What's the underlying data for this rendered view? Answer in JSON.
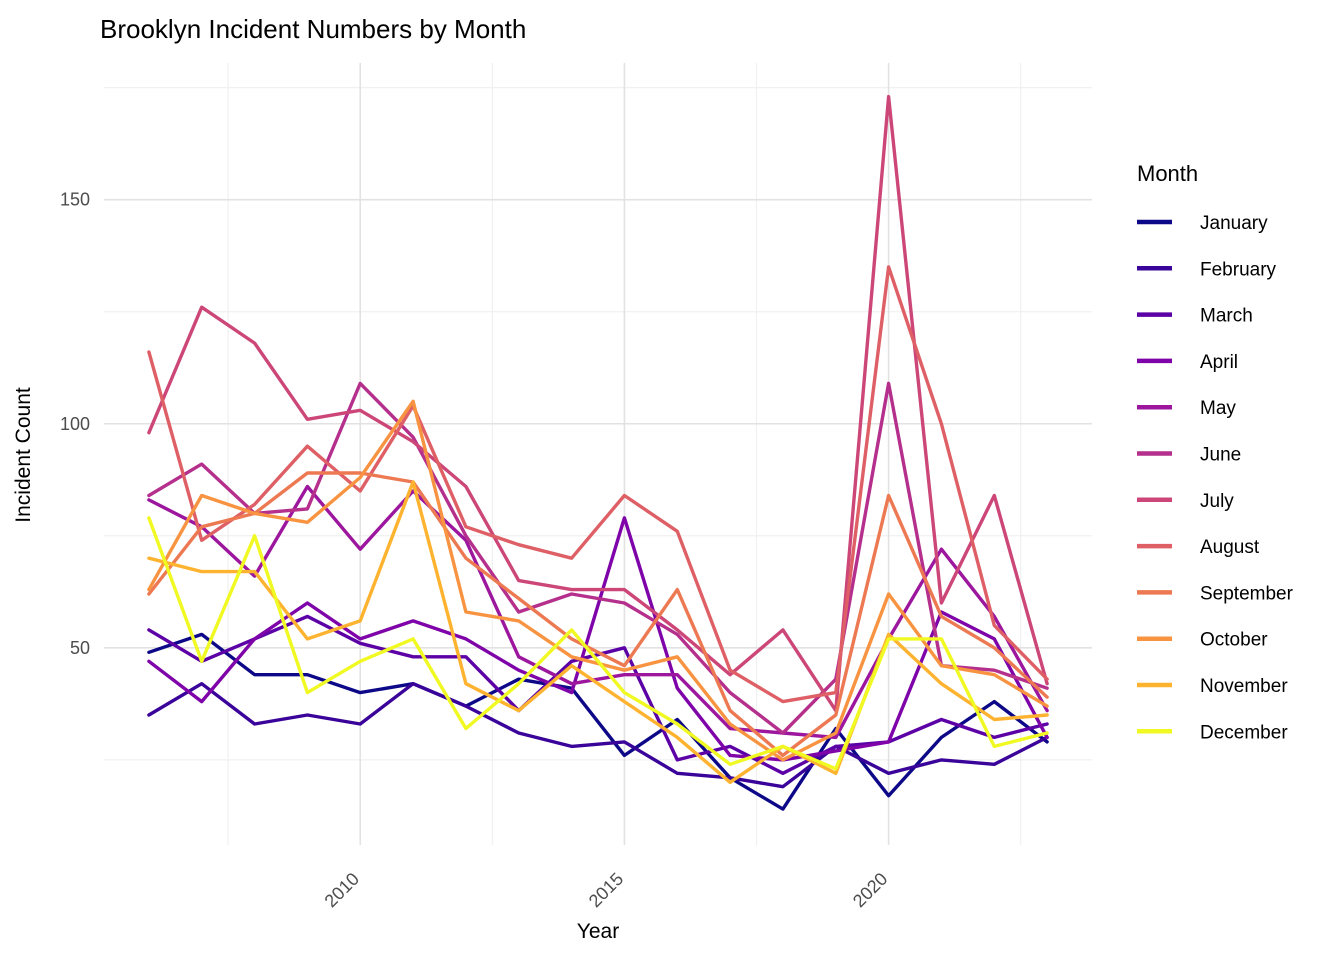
{
  "page": {
    "title": "Brooklyn Incident Numbers by Month"
  },
  "chart_data": {
    "type": "line",
    "title": "Brooklyn Incident Numbers by Month",
    "xlabel": "Year",
    "ylabel": "Incident Count",
    "legend_title": "Month",
    "legend_position": "right",
    "grid": true,
    "background": "#ffffff",
    "grid_major_color": "#e2e2e2",
    "grid_minor_color": "#f0f0f0",
    "tick_label_color": "#4d4d4d",
    "x": [
      2006,
      2007,
      2008,
      2009,
      2010,
      2011,
      2012,
      2013,
      2014,
      2015,
      2016,
      2017,
      2018,
      2019,
      2020,
      2021,
      2022,
      2023
    ],
    "xlim": [
      2005.15,
      2023.85
    ],
    "ylim": [
      6,
      180.5
    ],
    "x_major_ticks": [
      2010,
      2015,
      2020
    ],
    "x_minor_ticks": [
      2007.5,
      2012.5,
      2017.5,
      2022.5
    ],
    "y_major_ticks": [
      50,
      100,
      150
    ],
    "y_minor_ticks": [
      25,
      75,
      125,
      175
    ],
    "series": [
      {
        "name": "January",
        "color": "#0D0887",
        "values": [
          49,
          53,
          44,
          44,
          40,
          42,
          37,
          43,
          41,
          26,
          34,
          21,
          14,
          32,
          17,
          30,
          38,
          29
        ]
      },
      {
        "name": "February",
        "color": "#3A049A",
        "values": [
          35,
          42,
          33,
          35,
          33,
          42,
          37,
          31,
          28,
          29,
          22,
          21,
          19,
          28,
          22,
          25,
          24,
          30
        ]
      },
      {
        "name": "March",
        "color": "#5C01A6",
        "values": [
          54,
          47,
          52,
          57,
          51,
          48,
          48,
          36,
          47,
          50,
          25,
          28,
          22,
          28,
          29,
          34,
          30,
          33
        ]
      },
      {
        "name": "April",
        "color": "#7E03A8",
        "values": [
          47,
          38,
          52,
          60,
          52,
          56,
          52,
          45,
          40,
          79,
          41,
          26,
          25,
          27,
          29,
          58,
          52,
          30
        ]
      },
      {
        "name": "May",
        "color": "#9C179E",
        "values": [
          83,
          77,
          66,
          86,
          72,
          85,
          74,
          48,
          42,
          44,
          44,
          32,
          31,
          30,
          52,
          72,
          57,
          36
        ]
      },
      {
        "name": "June",
        "color": "#B52F8C",
        "values": [
          84,
          91,
          80,
          81,
          109,
          97,
          75,
          58,
          62,
          60,
          53,
          40,
          31,
          43,
          109,
          46,
          45,
          41
        ]
      },
      {
        "name": "July",
        "color": "#CC4778",
        "values": [
          98,
          126,
          118,
          101,
          103,
          96,
          86,
          65,
          63,
          63,
          54,
          44,
          54,
          36,
          173,
          60,
          84,
          42
        ]
      },
      {
        "name": "August",
        "color": "#DE5F65",
        "values": [
          116,
          74,
          82,
          95,
          85,
          104,
          77,
          73,
          70,
          84,
          76,
          45,
          38,
          40,
          135,
          100,
          55,
          43
        ]
      },
      {
        "name": "September",
        "color": "#ED7953",
        "values": [
          62,
          77,
          80,
          89,
          89,
          87,
          70,
          61,
          52,
          46,
          63,
          36,
          26,
          35,
          84,
          57,
          50,
          39
        ]
      },
      {
        "name": "October",
        "color": "#F89441",
        "values": [
          63,
          84,
          80,
          78,
          88,
          105,
          58,
          56,
          48,
          45,
          48,
          33,
          25,
          31,
          62,
          46,
          44,
          37
        ]
      },
      {
        "name": "November",
        "color": "#FDB32F",
        "values": [
          70,
          67,
          67,
          52,
          56,
          87,
          42,
          36,
          46,
          38,
          30,
          20,
          28,
          22,
          53,
          42,
          34,
          35
        ]
      },
      {
        "name": "December",
        "color": "#F0F921",
        "values": [
          79,
          47,
          75,
          40,
          47,
          52,
          32,
          42,
          54,
          40,
          33,
          24,
          28,
          23,
          52,
          52,
          28,
          31
        ]
      }
    ]
  },
  "layout_text": {
    "x_tick_labels": [
      "2010",
      "2015",
      "2020"
    ],
    "y_tick_labels": [
      "50",
      "100",
      "150"
    ]
  }
}
